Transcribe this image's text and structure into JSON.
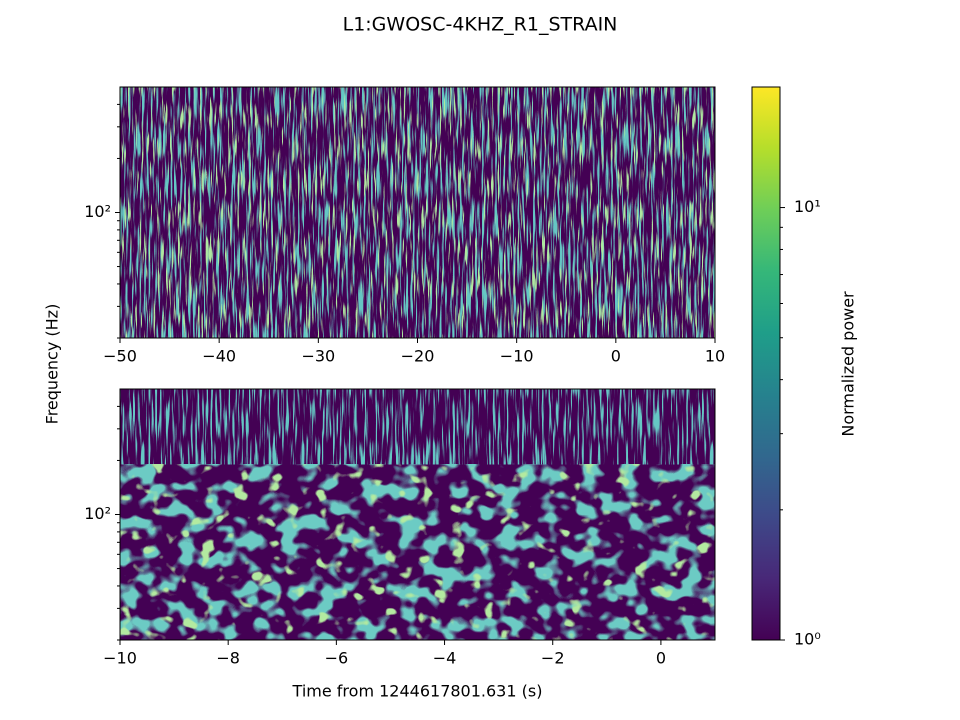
{
  "figure": {
    "title": "L1:GWOSC-4KHZ_R1_STRAIN",
    "ylabel": "Frequency (Hz)"
  },
  "colorbar": {
    "label": "Normalized power",
    "log": true,
    "lim": [
      1,
      19
    ],
    "ticks": [
      {
        "value": 1,
        "label": "10⁰"
      },
      {
        "value": 10,
        "label": "10¹"
      }
    ],
    "minorticks": [
      2,
      3,
      4,
      5,
      6,
      7,
      8,
      9
    ],
    "colors": [
      "#440154",
      "#482878",
      "#3e4989",
      "#31688e",
      "#26828e",
      "#1f9e89",
      "#35b779",
      "#6ece58",
      "#b5de2b",
      "#fde725"
    ]
  },
  "chart_data": [
    {
      "type": "spectrogram",
      "ylog": true,
      "xlim": [
        -50,
        10
      ],
      "xticks": [
        {
          "value": -50,
          "label": "−50"
        },
        {
          "value": -40,
          "label": "−40"
        },
        {
          "value": -30,
          "label": "−30"
        },
        {
          "value": -20,
          "label": "−20"
        },
        {
          "value": -10,
          "label": "−10"
        },
        0,
        10
      ],
      "ylim": [
        20,
        500
      ],
      "yticks": [
        {
          "value": 100,
          "label": "10²"
        }
      ],
      "yminorticks": [
        20,
        30,
        40,
        50,
        60,
        70,
        80,
        90,
        200,
        300,
        400
      ]
    },
    {
      "type": "spectrogram",
      "ylog": true,
      "xlim": [
        -10,
        1
      ],
      "xticks": [
        {
          "value": -10,
          "label": "−10"
        },
        {
          "value": -8,
          "label": "−8"
        },
        {
          "value": -6,
          "label": "−6"
        },
        {
          "value": -4,
          "label": "−4"
        },
        {
          "value": -2,
          "label": "−2"
        },
        0
      ],
      "ylim": [
        20,
        500
      ],
      "yticks": [
        {
          "value": 100,
          "label": "10²"
        }
      ],
      "yminorticks": [
        20,
        30,
        40,
        50,
        60,
        70,
        80,
        90,
        200,
        300,
        400
      ],
      "xlabel": "Time from 1244617801.631 (s)"
    }
  ]
}
